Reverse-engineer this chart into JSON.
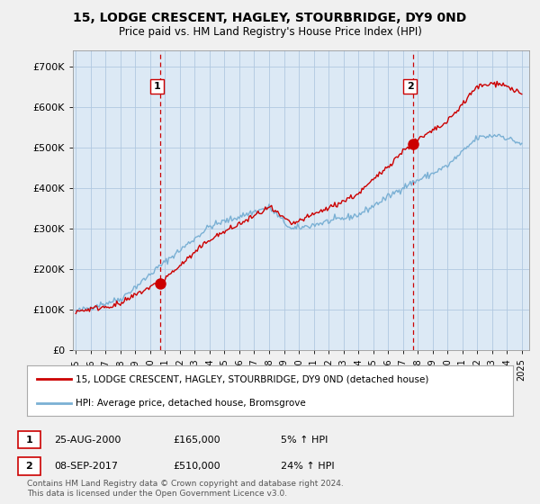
{
  "title": "15, LODGE CRESCENT, HAGLEY, STOURBRIDGE, DY9 0ND",
  "subtitle": "Price paid vs. HM Land Registry's House Price Index (HPI)",
  "ylabel_ticks": [
    "£0",
    "£100K",
    "£200K",
    "£300K",
    "£400K",
    "£500K",
    "£600K",
    "£700K"
  ],
  "ytick_values": [
    0,
    100000,
    200000,
    300000,
    400000,
    500000,
    600000,
    700000
  ],
  "ylim": [
    0,
    740000
  ],
  "house_color": "#cc0000",
  "hpi_color": "#7ab0d4",
  "purchase1_year": 2000.65,
  "purchase1_price": 165000,
  "purchase2_year": 2017.68,
  "purchase2_price": 510000,
  "legend_house": "15, LODGE CRESCENT, HAGLEY, STOURBRIDGE, DY9 0ND (detached house)",
  "legend_hpi": "HPI: Average price, detached house, Bromsgrove",
  "table_rows": [
    {
      "num": "1",
      "date": "25-AUG-2000",
      "price": "£165,000",
      "hpi": "5% ↑ HPI"
    },
    {
      "num": "2",
      "date": "08-SEP-2017",
      "price": "£510,000",
      "hpi": "24% ↑ HPI"
    }
  ],
  "footer": "Contains HM Land Registry data © Crown copyright and database right 2024.\nThis data is licensed under the Open Government Licence v3.0.",
  "background_color": "#f0f0f0",
  "plot_bg_color": "#dce9f5",
  "grid_color": "#b0c8e0",
  "marker_vline_color": "#cc0000",
  "title_fontsize": 10,
  "subtitle_fontsize": 8.5
}
